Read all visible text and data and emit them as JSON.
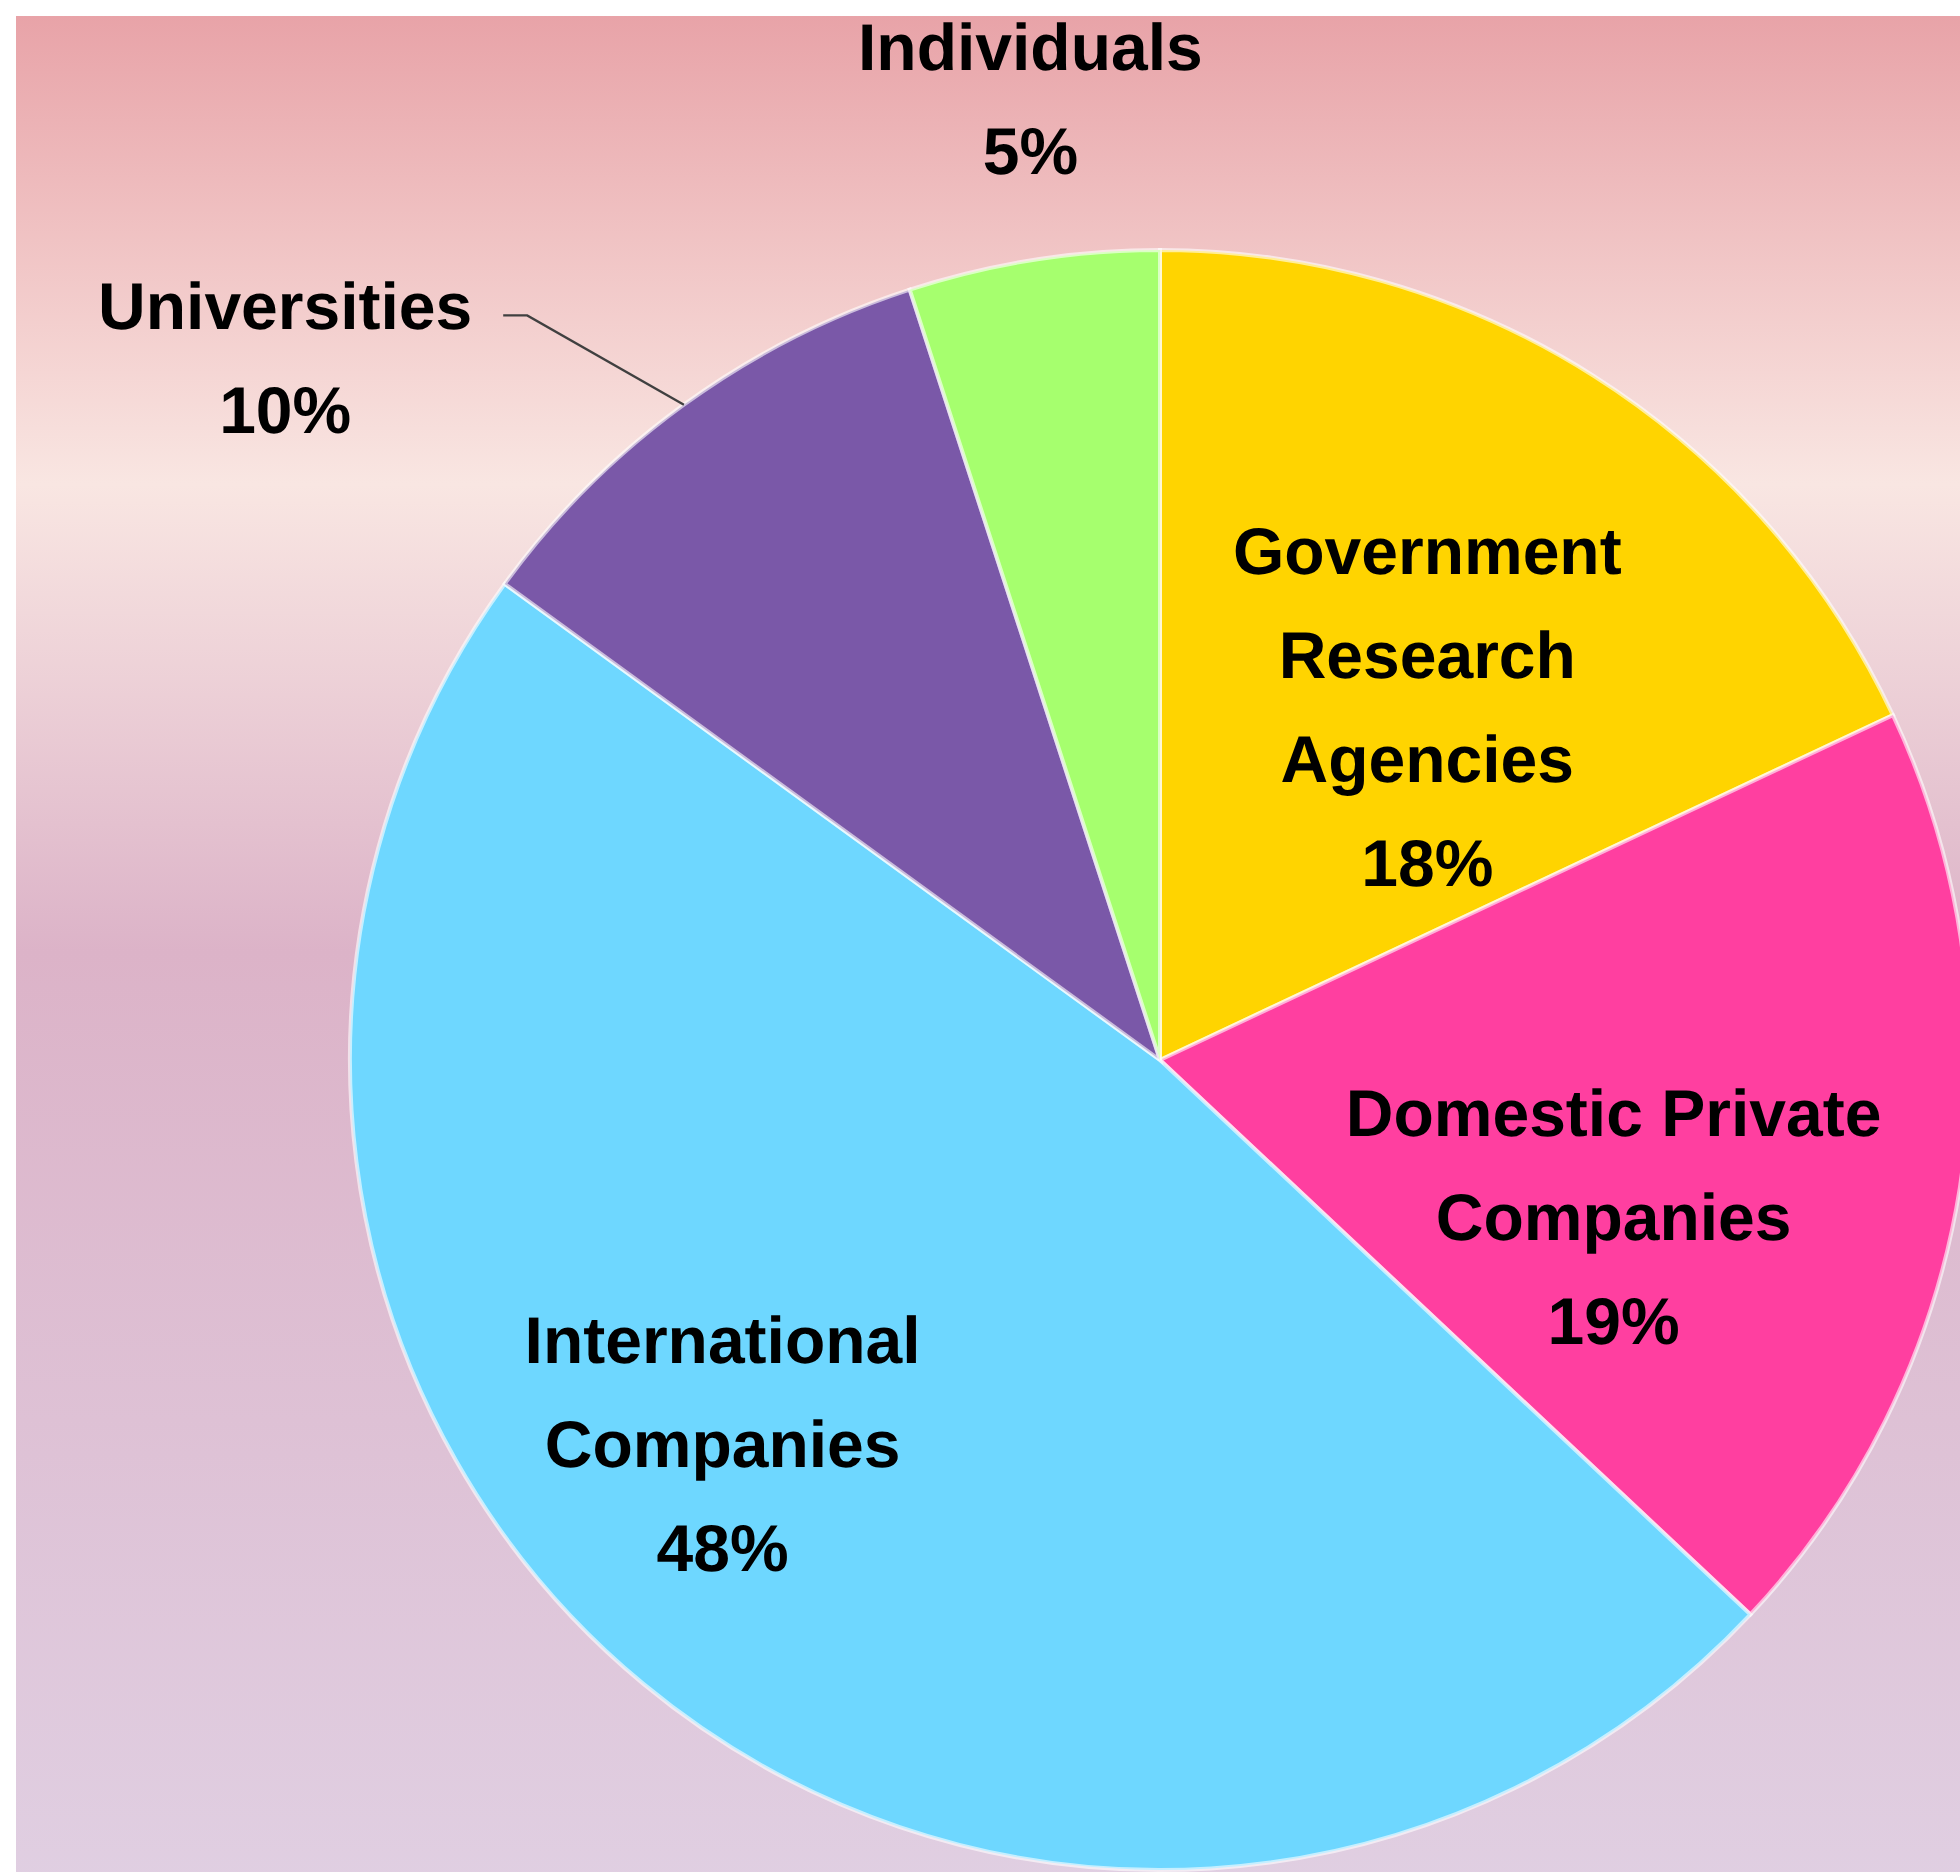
{
  "chart_data": {
    "type": "pie",
    "categories": [
      "Government Research Agencies",
      "Domestic Private Companies",
      "International Companies",
      "Universities",
      "Individuals"
    ],
    "values": [
      18,
      19,
      48,
      10,
      5
    ],
    "colors": [
      "#ffd400",
      "#ff3fa0",
      "#6ed7ff",
      "#7a58a8",
      "#a6ff6e"
    ],
    "value_labels": [
      "18%",
      "19%",
      "48%",
      "10%",
      "5%"
    ]
  }
}
